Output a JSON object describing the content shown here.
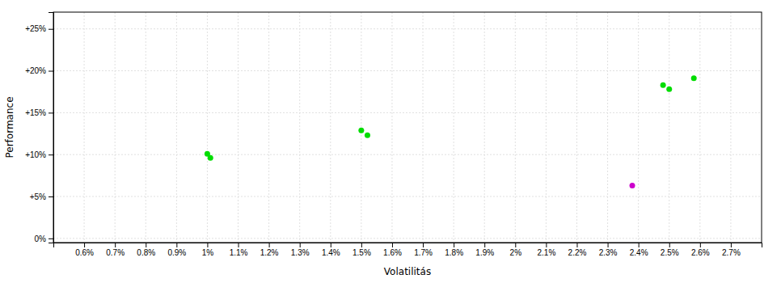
{
  "chart_data": {
    "type": "scatter",
    "xlabel": "Volatilitás",
    "ylabel": "Performance",
    "xlim": [
      0.005,
      0.028
    ],
    "ylim": [
      -0.005,
      0.27
    ],
    "xticks": [
      {
        "value": 0.006,
        "label": "0.6%"
      },
      {
        "value": 0.007,
        "label": "0.7%"
      },
      {
        "value": 0.008,
        "label": "0.8%"
      },
      {
        "value": 0.009,
        "label": "0.9%"
      },
      {
        "value": 0.01,
        "label": "1%"
      },
      {
        "value": 0.011,
        "label": "1.1%"
      },
      {
        "value": 0.012,
        "label": "1.2%"
      },
      {
        "value": 0.013,
        "label": "1.3%"
      },
      {
        "value": 0.014,
        "label": "1.4%"
      },
      {
        "value": 0.015,
        "label": "1.5%"
      },
      {
        "value": 0.016,
        "label": "1.6%"
      },
      {
        "value": 0.017,
        "label": "1.7%"
      },
      {
        "value": 0.018,
        "label": "1.8%"
      },
      {
        "value": 0.019,
        "label": "1.9%"
      },
      {
        "value": 0.02,
        "label": "2%"
      },
      {
        "value": 0.021,
        "label": "2.1%"
      },
      {
        "value": 0.022,
        "label": "2.2%"
      },
      {
        "value": 0.023,
        "label": "2.3%"
      },
      {
        "value": 0.024,
        "label": "2.4%"
      },
      {
        "value": 0.025,
        "label": "2.5%"
      },
      {
        "value": 0.026,
        "label": "2.6%"
      },
      {
        "value": 0.027,
        "label": "2.7%"
      }
    ],
    "yticks": [
      {
        "value": 0.0,
        "label": "0%"
      },
      {
        "value": 0.05,
        "label": "+5%"
      },
      {
        "value": 0.1,
        "label": "+10%"
      },
      {
        "value": 0.15,
        "label": "+15%"
      },
      {
        "value": 0.2,
        "label": "+20%"
      },
      {
        "value": 0.25,
        "label": "+25%"
      }
    ],
    "grid": true,
    "series": [
      {
        "color": "#00dd00",
        "x": [
          0.01,
          0.0101,
          0.015,
          0.0152,
          0.0248,
          0.025,
          0.0258
        ],
        "values": [
          0.101,
          0.096,
          0.129,
          0.123,
          0.183,
          0.178,
          0.191
        ]
      },
      {
        "color": "#cc00cc",
        "x": [
          0.0238
        ],
        "values": [
          0.063
        ]
      }
    ]
  }
}
